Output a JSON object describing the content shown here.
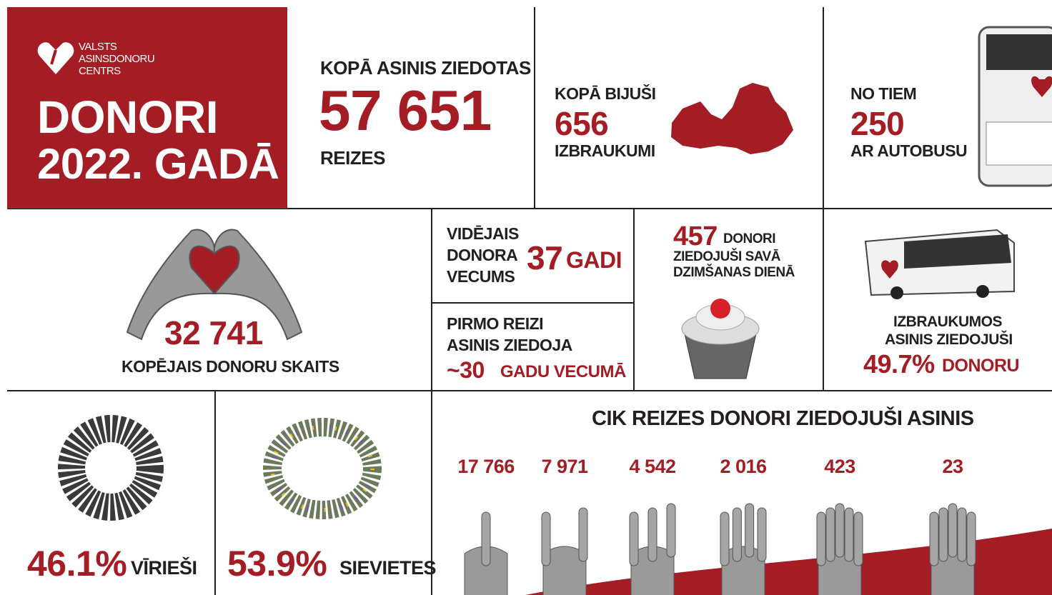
{
  "header": {
    "logo": [
      "VALSTS",
      "ASINSDONORU",
      "CENTRS"
    ],
    "title": [
      "DONORI",
      "2022. GADĀ"
    ]
  },
  "total_donations": {
    "label": "KOPĀ ASINIS ZIEDOTAS",
    "value": "57 651",
    "unit": "REIZES"
  },
  "trips": {
    "label": "KOPĀ BIJUŠI",
    "value": "656",
    "unit": "IZBRAUKUMI"
  },
  "bus_trips": {
    "label": "NO TIEM",
    "value": "250",
    "unit": "AR AUTOBUSU"
  },
  "donors": {
    "value": "32 741",
    "label": "KOPĒJAIS DONORU SKAITS"
  },
  "average_age": {
    "label": [
      "VIDĒJAIS",
      "DONORA",
      "VECUMS"
    ],
    "value": "37",
    "unit": "GADI"
  },
  "first_donation": {
    "label": [
      "PIRMO REIZI",
      "ASINIS ZIEDOJA"
    ],
    "value": "~30",
    "unit": "GADU VECUMĀ"
  },
  "birthday": {
    "value": "457",
    "unit": "DONORI",
    "label": [
      "ZIEDOJUŠI SAVĀ",
      "DZIMŠANAS DIENĀ"
    ]
  },
  "trip_donors": {
    "label": [
      "IZBRAUKUMOS",
      "ASINIS ZIEDOJUŠI"
    ],
    "value": "49.7%",
    "unit": "DONORU"
  },
  "men": {
    "value": "46.1%",
    "label": "VĪRIEŠI"
  },
  "women": {
    "value": "53.9%",
    "label": "SIEVIETES"
  },
  "frequency": {
    "title": "CIK REIZES DONORI ZIEDOJUŠI ASINIS",
    "counts": [
      "17 766",
      "7 971",
      "4 542",
      "2 016",
      "423",
      "23"
    ]
  }
}
